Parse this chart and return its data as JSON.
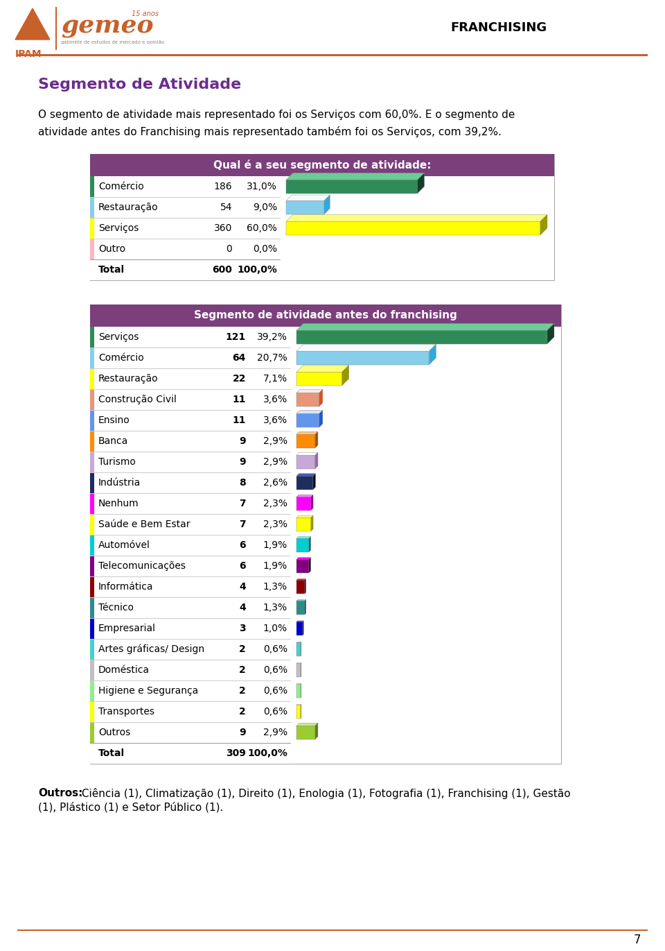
{
  "title": "Segmento de Atividade",
  "header_text_line1": "O segmento de atividade mais representado foi os Serviços com 60,0%. E o segmento de",
  "header_text_line2": "atividade antes do Franchising mais representado também foi os Serviços, com 39,2%.",
  "franchising_label": "FRANCHISING",
  "table1_title": "Qual é a seu segmento de atividade:",
  "table1_title_bg": "#7B3F7B",
  "table1_rows": [
    {
      "label": "Comércio",
      "value": 186,
      "pct": "31,0%",
      "color": "#2E8B57"
    },
    {
      "label": "Restauração",
      "value": 54,
      "pct": "9,0%",
      "color": "#87CEEB"
    },
    {
      "label": "Serviços",
      "value": 360,
      "pct": "60,0%",
      "color": "#FFFF00"
    },
    {
      "label": "Outro",
      "value": 0,
      "pct": "0,0%",
      "color": "#FFB6C1"
    }
  ],
  "table1_total": {
    "label": "Total",
    "value": 600,
    "pct": "100,0%"
  },
  "table2_title": "Segmento de atividade antes do franchising",
  "table2_title_bg": "#7B3F7B",
  "table2_rows": [
    {
      "label": "Serviços",
      "value": 121,
      "pct": "39,2%",
      "color": "#2E8B57"
    },
    {
      "label": "Comércio",
      "value": 64,
      "pct": "20,7%",
      "color": "#87CEEB"
    },
    {
      "label": "Restauração",
      "value": 22,
      "pct": "7,1%",
      "color": "#FFFF00"
    },
    {
      "label": "Construção Civil",
      "value": 11,
      "pct": "3,6%",
      "color": "#E8967A"
    },
    {
      "label": "Ensino",
      "value": 11,
      "pct": "3,6%",
      "color": "#6495ED"
    },
    {
      "label": "Banca",
      "value": 9,
      "pct": "2,9%",
      "color": "#FF8C00"
    },
    {
      "label": "Turismo",
      "value": 9,
      "pct": "2,9%",
      "color": "#C8A8D8"
    },
    {
      "label": "Indústria",
      "value": 8,
      "pct": "2,6%",
      "color": "#1C2D5E"
    },
    {
      "label": "Nenhum",
      "value": 7,
      "pct": "2,3%",
      "color": "#FF00FF"
    },
    {
      "label": "Saúde e Bem Estar",
      "value": 7,
      "pct": "2,3%",
      "color": "#FFFF00"
    },
    {
      "label": "Automóvel",
      "value": 6,
      "pct": "1,9%",
      "color": "#00CED1"
    },
    {
      "label": "Telecomunicações",
      "value": 6,
      "pct": "1,9%",
      "color": "#800080"
    },
    {
      "label": "Informática",
      "value": 4,
      "pct": "1,3%",
      "color": "#8B0000"
    },
    {
      "label": "Técnico",
      "value": 4,
      "pct": "1,3%",
      "color": "#2E8B8B"
    },
    {
      "label": "Empresarial",
      "value": 3,
      "pct": "1,0%",
      "color": "#0000CD"
    },
    {
      "label": "Artes gráficas/ Design",
      "value": 2,
      "pct": "0,6%",
      "color": "#48D1CC"
    },
    {
      "label": "Doméstica",
      "value": 2,
      "pct": "0,6%",
      "color": "#C0C0C0"
    },
    {
      "label": "Higiene e Segurança",
      "value": 2,
      "pct": "0,6%",
      "color": "#90EE90"
    },
    {
      "label": "Transportes",
      "value": 2,
      "pct": "0,6%",
      "color": "#FFFF00"
    },
    {
      "label": "Outros",
      "value": 9,
      "pct": "2,9%",
      "color": "#9ACD32"
    }
  ],
  "table2_total": {
    "label": "Total",
    "value": 309,
    "pct": "100,0%"
  },
  "footer_bold": "Outros:",
  "footer_rest": " Ciência (1), Climatização (1), Direito (1), Enologia (1), Fotografia (1), Franchising (1), Gestão",
  "footer_line2": "(1), Plástico (1) e Setor Público (1).",
  "page_number": "7",
  "orange_color": "#C8602A",
  "purple_color": "#6B2D8B",
  "bar_max_1": 360,
  "bar_max_2": 121
}
